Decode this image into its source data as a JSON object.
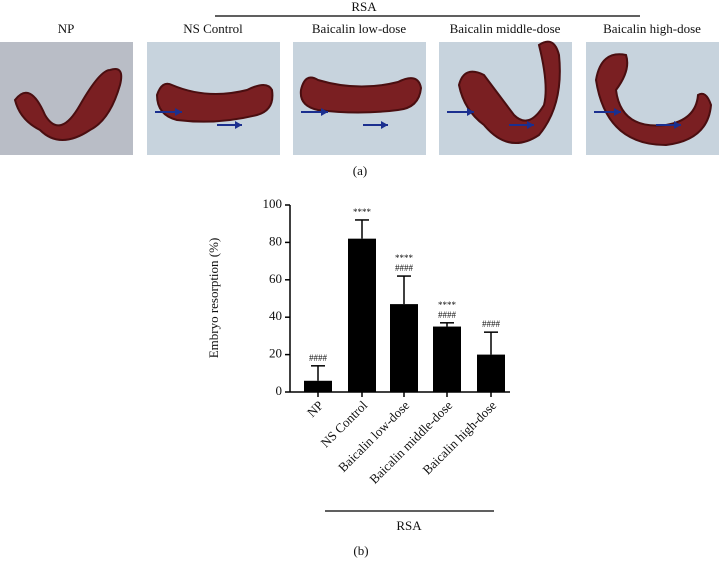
{
  "panel_a": {
    "group_label": "RSA",
    "labels": [
      "NP",
      "NS Control",
      "Baicalin low-dose",
      "Baicalin middle-dose",
      "Baicalin high-dose"
    ],
    "caption": "(a)"
  },
  "chart_data": {
    "type": "bar",
    "caption": "(b)",
    "y_label": "Embryo resorption (%)",
    "group_label": "RSA",
    "categories": [
      "NP",
      "NS Control",
      "Baicalin low-dose",
      "Baicalin middle-dose",
      "Baicalin high-dose"
    ],
    "values": [
      6,
      82,
      47,
      35,
      20
    ],
    "errors": [
      8,
      10,
      15,
      2,
      12
    ],
    "annotations": [
      [
        "####"
      ],
      [
        "****"
      ],
      [
        "****",
        "####"
      ],
      [
        "****",
        "####"
      ],
      [
        "####"
      ]
    ],
    "color": "#000000",
    "ylim": [
      0,
      100
    ],
    "yticks": [
      0,
      20,
      40,
      60,
      80,
      100
    ]
  }
}
